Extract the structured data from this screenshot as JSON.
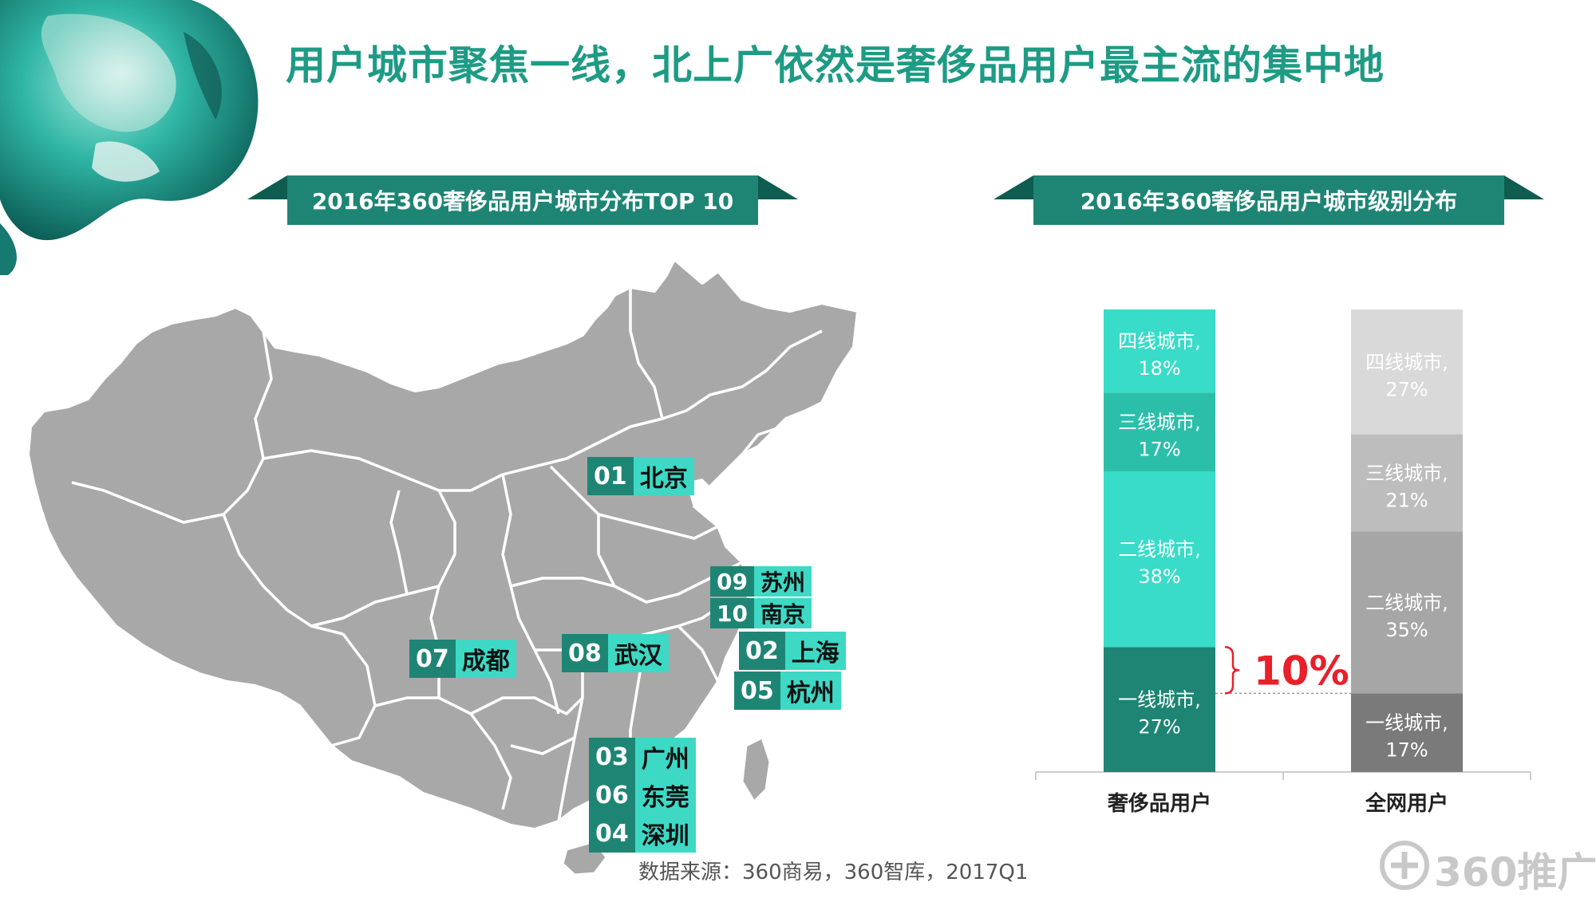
{
  "title": "用户城市聚焦一线，北上广依然是奢侈品用户最主流的集中地",
  "map_section": {
    "heading": "2016年360奢侈品用户城市分布TOP 10",
    "cities": [
      {
        "rank": "01",
        "name": "北京"
      },
      {
        "rank": "02",
        "name": "上海"
      },
      {
        "rank": "03",
        "name": "广州"
      },
      {
        "rank": "04",
        "name": "深圳"
      },
      {
        "rank": "05",
        "name": "杭州"
      },
      {
        "rank": "06",
        "name": "东莞"
      },
      {
        "rank": "07",
        "name": "成都"
      },
      {
        "rank": "08",
        "name": "武汉"
      },
      {
        "rank": "09",
        "name": "苏州"
      },
      {
        "rank": "10",
        "name": "南京"
      }
    ]
  },
  "chart_section": {
    "heading": "2016年360奢侈品用户城市级别分布",
    "difference_label": "10%"
  },
  "source_note": "数据来源：360商易，360智库，2017Q1",
  "logo_text": "360推广",
  "colors": {
    "title_green": "#1e9b84",
    "ribbon_green": "#1e8574",
    "ribbon_dark": "#0f5c50",
    "map_gray": "#a8a8a8",
    "label_teal": "#3dd9c5",
    "highlight_red": "#e8202a"
  },
  "chart_data": {
    "type": "bar",
    "stacked": true,
    "percent": true,
    "categories": [
      "奢侈品用户",
      "全网用户"
    ],
    "series": [
      {
        "name": "一线城市",
        "values": [
          27,
          17
        ],
        "colors": [
          "#1e8574",
          "#7a7a7a"
        ]
      },
      {
        "name": "二线城市",
        "values": [
          38,
          35
        ],
        "colors": [
          "#38dcc8",
          "#a6a6a6"
        ]
      },
      {
        "name": "三线城市",
        "values": [
          17,
          21
        ],
        "colors": [
          "#2bbfaa",
          "#bdbdbd"
        ]
      },
      {
        "name": "四线城市",
        "values": [
          18,
          27
        ],
        "colors": [
          "#38dcc8",
          "#d9d9d9"
        ]
      }
    ],
    "segment_labels": [
      [
        "一线城市,",
        "二线城市,",
        "三线城市,",
        "四线城市,"
      ],
      [
        "一线城市,",
        "二线城市,",
        "三线城市,",
        "四线城市,"
      ]
    ],
    "percent_labels": [
      [
        "27%",
        "38%",
        "17%",
        "18%"
      ],
      [
        "17%",
        "35%",
        "21%",
        "27%"
      ]
    ],
    "ylim": [
      0,
      100
    ],
    "grid": false,
    "legend": "none"
  }
}
